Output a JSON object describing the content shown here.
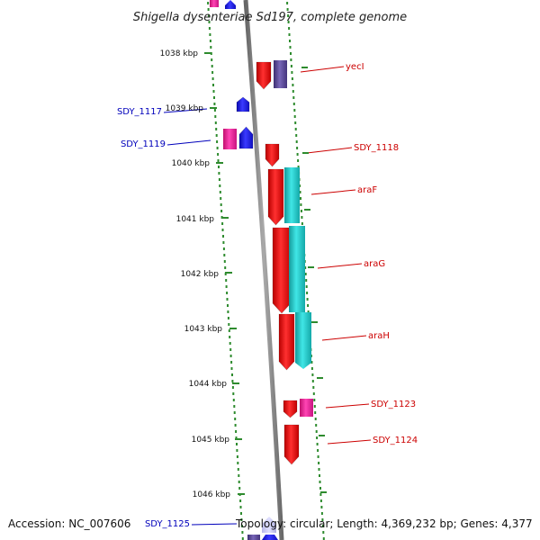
{
  "title": "Shigella dysenteriae Sd197, complete genome",
  "footer": {
    "accession": "Accession: NC_007606",
    "topology": "Topology: circular; Length: 4,369,232 bp; Genes: 4,377"
  },
  "ticks": [
    "1038 kbp",
    "1039 kbp",
    "1040 kbp",
    "1041 kbp",
    "1042 kbp",
    "1043 kbp",
    "1044 kbp",
    "1045 kbp",
    "1046 kbp"
  ],
  "genes_right": [
    "yecI",
    "SDY_1118",
    "araF",
    "araG",
    "araH",
    "SDY_1123",
    "SDY_1124"
  ],
  "genes_left": [
    "SDY_1117",
    "SDY_1119",
    "SDY_1125"
  ],
  "colors": {
    "backbone": "#888888",
    "dots": "#2e8b2e",
    "gene_red": "#ee1111",
    "gene_cyan": "#22cccc",
    "gene_blue": "#1a1aee",
    "gene_pink": "#ee2299",
    "gene_purple": "#5a4a9a",
    "label_red": "#cc0000",
    "label_blue": "#0000bb"
  }
}
